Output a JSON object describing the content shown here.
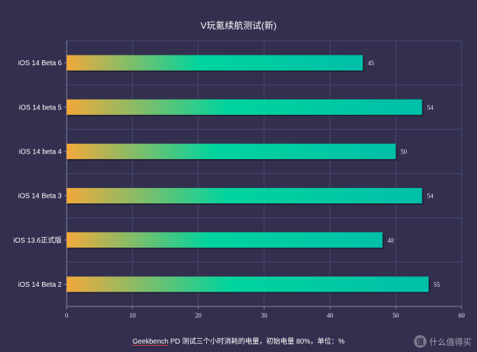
{
  "chart_data": {
    "type": "bar",
    "orientation": "horizontal",
    "title": "V玩氪续航测试(新)",
    "categories": [
      "iOS 14 Beta 6",
      "iOS 14 beta 5",
      "iOS 14 beta 4",
      "iOS 14 Beta 3",
      "iOS 13.6正式版",
      "iOS 14 Beta 2"
    ],
    "values": [
      45,
      54,
      50,
      54,
      48,
      55
    ],
    "xlim": [
      0,
      60
    ],
    "xticks": [
      "0",
      "10",
      "20",
      "30",
      "40",
      "50",
      "60"
    ],
    "grid": true,
    "colors": {
      "gradient_start": "#f2a93b",
      "gradient_mid": "#00d49e",
      "gradient_end": "#00bfa8",
      "background": "#33304f"
    }
  },
  "caption": {
    "underlined": "Geekbench",
    "rest": " PD 测试三个小时消耗的电量，初始电量 80%，单位：%"
  },
  "watermark": {
    "logo": "值",
    "text": "什么值得买"
  }
}
